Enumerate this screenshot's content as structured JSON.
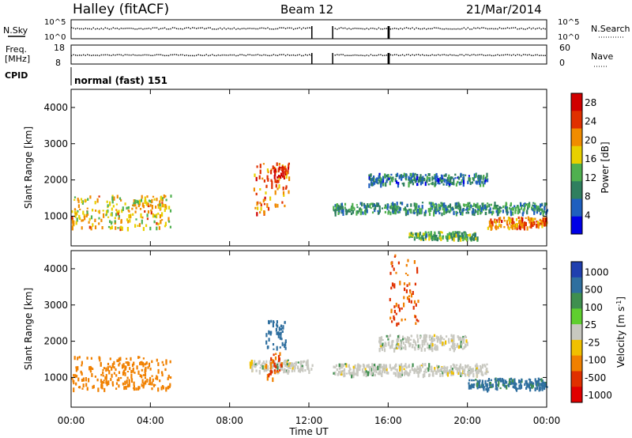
{
  "header": {
    "station": "Halley (fitACF)",
    "beam": "Beam 12",
    "date": "21/Mar/2014"
  },
  "top_panels": {
    "nsky_label": "N.Sky",
    "nsearch_label": "N.Search",
    "nsky_ticks": [
      "10^5",
      "10^0"
    ],
    "nsearch_ticks": [
      "10^5",
      "10^0"
    ],
    "freq_label": "Freq.",
    "freq_unit": "[MHz]",
    "freq_ticks": [
      "18",
      "8"
    ],
    "nave_label": "Nave",
    "nave_ticks": [
      "60",
      "0"
    ],
    "cpid_label": "CPID",
    "cpid_value": "normal (fast) 151"
  },
  "x_axis": {
    "label": "Time UT",
    "ticks": [
      "00:00",
      "04:00",
      "08:00",
      "12:00",
      "16:00",
      "20:00",
      "00:00"
    ],
    "range_hours": [
      0,
      24
    ]
  },
  "chart_data": [
    {
      "type": "heatmap",
      "title": "",
      "ylabel": "Slant Range [km]",
      "y_ticks": [
        "1000",
        "2000",
        "3000",
        "4000"
      ],
      "ylim": [
        180,
        4500
      ],
      "colorbar_label": "Power [dB]",
      "colorbar_ticks": [
        "4",
        "8",
        "12",
        "16",
        "20",
        "24",
        "28"
      ],
      "colorbar_colors": [
        "#0000e6",
        "#1f5fbf",
        "#2f7f5f",
        "#4fb04f",
        "#e8d000",
        "#f08c00",
        "#e03000",
        "#d00000"
      ],
      "colorbar_range": [
        0,
        30
      ],
      "features": [
        {
          "start_h": 0.0,
          "end_h": 5.0,
          "range_lo": 700,
          "range_hi": 1600,
          "value": 18
        },
        {
          "start_h": 9.2,
          "end_h": 11.0,
          "range_lo": 1100,
          "range_hi": 2500,
          "value": 22
        },
        {
          "start_h": 10.2,
          "end_h": 10.8,
          "range_lo": 2100,
          "range_hi": 2400,
          "value": 28
        },
        {
          "start_h": 13.2,
          "end_h": 24.0,
          "range_lo": 1100,
          "range_hi": 1400,
          "value": 10
        },
        {
          "start_h": 15.0,
          "end_h": 21.0,
          "range_lo": 1900,
          "range_hi": 2200,
          "value": 8
        },
        {
          "start_h": 21.0,
          "end_h": 24.0,
          "range_lo": 700,
          "range_hi": 1000,
          "value": 22
        },
        {
          "start_h": 17.0,
          "end_h": 20.5,
          "range_lo": 400,
          "range_hi": 600,
          "value": 12
        }
      ]
    },
    {
      "type": "heatmap",
      "title": "",
      "ylabel": "Slant Range [km]",
      "y_ticks": [
        "1000",
        "2000",
        "3000",
        "4000"
      ],
      "ylim": [
        180,
        4500
      ],
      "colorbar_label": "Velocity [m s^-1]",
      "colorbar_ticks": [
        "1000",
        "500",
        "100",
        "25",
        "-25",
        "-100",
        "-500",
        "-1000"
      ],
      "colorbar_colors": [
        "#1f3faf",
        "#2f6f9f",
        "#3f8f4f",
        "#5fcf2f",
        "#c8c8c0",
        "#f0c000",
        "#f08000",
        "#e03000",
        "#e00000"
      ],
      "features": [
        {
          "start_h": 0.0,
          "end_h": 5.0,
          "range_lo": 700,
          "range_hi": 1600,
          "value": -150
        },
        {
          "start_h": 9.0,
          "end_h": 12.2,
          "range_lo": 1200,
          "range_hi": 1500,
          "value": 0
        },
        {
          "start_h": 9.8,
          "end_h": 10.8,
          "range_lo": 1800,
          "range_hi": 2600,
          "value": 400
        },
        {
          "start_h": 9.8,
          "end_h": 10.6,
          "range_lo": 1000,
          "range_hi": 1700,
          "value": -500
        },
        {
          "start_h": 13.2,
          "end_h": 21.0,
          "range_lo": 1100,
          "range_hi": 1400,
          "value": 0
        },
        {
          "start_h": 15.5,
          "end_h": 20.0,
          "range_lo": 1800,
          "range_hi": 2200,
          "value": 0
        },
        {
          "start_h": 20.0,
          "end_h": 24.0,
          "range_lo": 700,
          "range_hi": 1000,
          "value": 120
        },
        {
          "start_h": 16.0,
          "end_h": 17.5,
          "range_lo": 2500,
          "range_hi": 4400,
          "value": -500
        }
      ]
    }
  ]
}
